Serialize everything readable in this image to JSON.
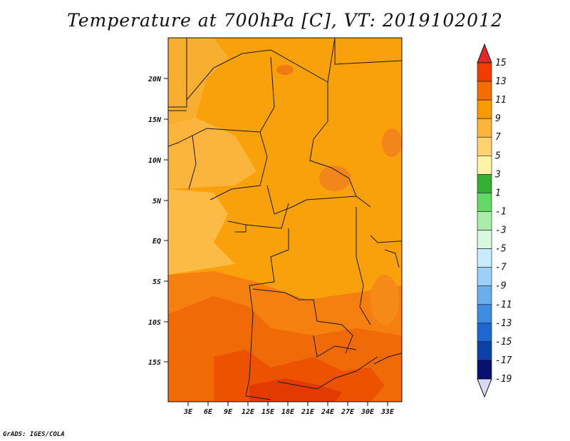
{
  "map": {
    "title": "Temperature at 700hPa [C], VT: 2019102012",
    "credit": "GrADS: IGES/COLA",
    "lat_ticks": [
      "20N",
      "15N",
      "10N",
      "5N",
      "EQ",
      "5S",
      "10S",
      "15S"
    ],
    "lon_ticks": [
      "3E",
      "6E",
      "9E",
      "12E",
      "15E",
      "18E",
      "21E",
      "24E",
      "27E",
      "30E",
      "33E"
    ]
  },
  "colorbar": {
    "labels": [
      "15",
      "13",
      "11",
      "9",
      "7",
      "5",
      "3",
      "1",
      "-1",
      "-3",
      "-5",
      "-7",
      "-9",
      "-11",
      "-13",
      "-15",
      "-17",
      "-19"
    ],
    "colors": [
      "#c40000",
      "#f03c00",
      "#f56d00",
      "#f89b00",
      "#fbb53c",
      "#fdd370",
      "#fff3a8",
      "#34b034",
      "#64d864",
      "#a8eda8",
      "#d8f8e0",
      "#c8ecff",
      "#9cd0f8",
      "#6aaeee",
      "#3c8ce4",
      "#1e66d0",
      "#0c42a8",
      "#081070",
      "#d8d8f8"
    ],
    "top_arrow_color": "#e02828",
    "bottom_arrow_color": "#d8d8f8"
  }
}
